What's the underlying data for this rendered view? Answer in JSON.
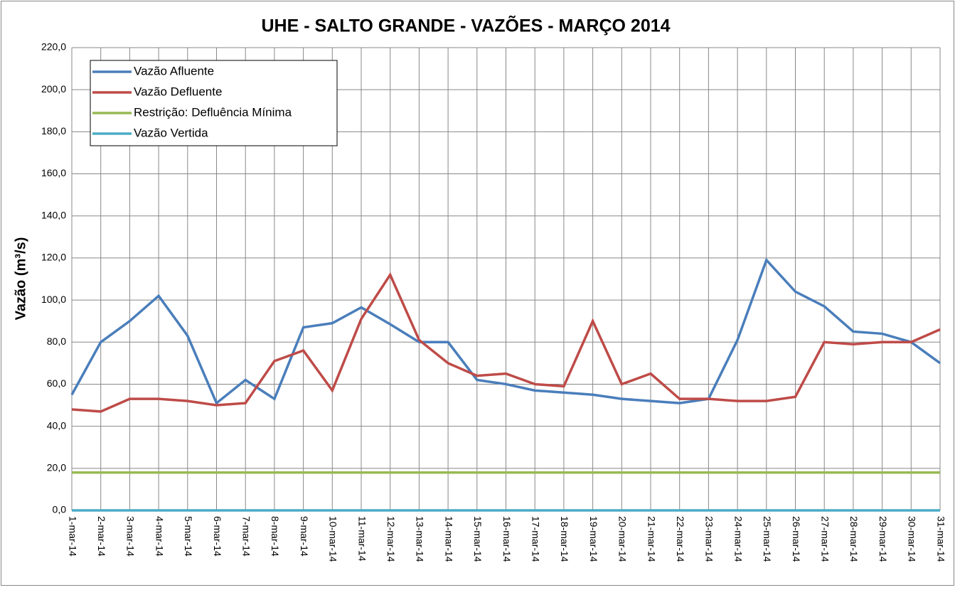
{
  "chart_data": {
    "type": "line",
    "title": "UHE - SALTO GRANDE - VAZÕES - MARÇO 2014",
    "y_label": "Vazão (m³/s)",
    "categories": [
      "1-mar-14",
      "2-mar-14",
      "3-mar-14",
      "4-mar-14",
      "5-mar-14",
      "6-mar-14",
      "7-mar-14",
      "8-mar-14",
      "9-mar-14",
      "10-mar-14",
      "11-mar-14",
      "12-mar-14",
      "13-mar-14",
      "14-mar-14",
      "15-mar-14",
      "16-mar-14",
      "17-mar-14",
      "18-mar-14",
      "19-mar-14",
      "20-mar-14",
      "21-mar-14",
      "22-mar-14",
      "23-mar-14",
      "24-mar-14",
      "25-mar-14",
      "26-mar-14",
      "27-mar-14",
      "28-mar-14",
      "29-mar-14",
      "30-mar-14",
      "31-mar-14"
    ],
    "series": [
      {
        "name": "Vazão Afluente",
        "color": "#4a7ebb",
        "values": [
          55,
          80,
          90,
          102,
          83,
          51,
          62,
          53,
          87,
          89,
          96.5,
          88.5,
          80,
          80,
          62,
          60,
          57,
          56,
          55,
          53,
          52,
          51,
          53,
          81,
          119,
          104,
          97,
          85,
          84,
          80,
          70
        ]
      },
      {
        "name": "Vazão Defluente",
        "color": "#be4b48",
        "values": [
          48,
          47,
          53,
          53,
          52,
          50,
          51,
          71,
          76,
          57,
          91,
          112,
          81,
          70,
          64,
          65,
          60,
          59,
          90,
          60,
          65,
          53,
          53,
          52,
          52,
          54,
          80,
          79,
          80,
          80,
          86
        ]
      },
      {
        "name": "Restrição: Defluência Mínima",
        "color": "#98b954",
        "values": [
          18,
          18,
          18,
          18,
          18,
          18,
          18,
          18,
          18,
          18,
          18,
          18,
          18,
          18,
          18,
          18,
          18,
          18,
          18,
          18,
          18,
          18,
          18,
          18,
          18,
          18,
          18,
          18,
          18,
          18,
          18
        ]
      },
      {
        "name": "Vazão Vertida",
        "color": "#4bacc6",
        "values": [
          0,
          0,
          0,
          0,
          0,
          0,
          0,
          0,
          0,
          0,
          0,
          0,
          0,
          0,
          0,
          0,
          0,
          0,
          0,
          0,
          0,
          0,
          0,
          0,
          0,
          0,
          0,
          0,
          0,
          0,
          0
        ]
      }
    ],
    "ylim": [
      0,
      220
    ],
    "yticks": [
      {
        "value": 0,
        "label": "0,0"
      },
      {
        "value": 20,
        "label": "20,0"
      },
      {
        "value": 40,
        "label": "40,0"
      },
      {
        "value": 60,
        "label": "60,0"
      },
      {
        "value": 80,
        "label": "80,0"
      },
      {
        "value": 100,
        "label": "100,0"
      },
      {
        "value": 120,
        "label": "120,0"
      },
      {
        "value": 140,
        "label": "140,0"
      },
      {
        "value": 160,
        "label": "160,0"
      },
      {
        "value": 180,
        "label": "180,0"
      },
      {
        "value": 200,
        "label": "200,0"
      },
      {
        "value": 220,
        "label": "220,0"
      }
    ],
    "grid": true,
    "legend": "upper left"
  }
}
